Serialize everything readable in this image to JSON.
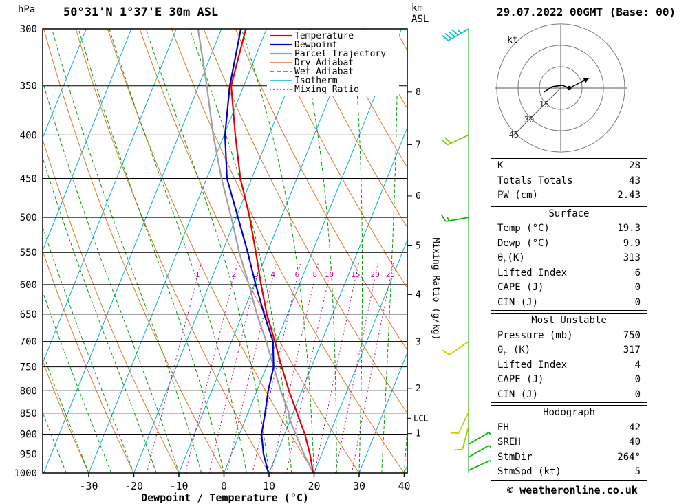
{
  "header": {
    "station_title": "50°31'N 1°37'E 30m ASL",
    "datetime_title": "29.07.2022 00GMT (Base: 00)",
    "pressure_unit": "hPa",
    "altitude_unit": [
      "km",
      "ASL"
    ]
  },
  "axes": {
    "pressure_ticks": [
      300,
      350,
      400,
      450,
      500,
      550,
      600,
      650,
      700,
      750,
      800,
      850,
      900,
      950,
      1000
    ],
    "temp_ticks": [
      -30,
      -20,
      -10,
      0,
      10,
      20,
      30,
      40
    ],
    "x_axis_label": "Dewpoint / Temperature (°C)",
    "km_ticks": [
      1,
      2,
      3,
      4,
      5,
      6,
      7,
      8
    ],
    "mixing_ratio_axis_label": "Mixing Ratio (g/kg)",
    "lcl_label": "LCL",
    "mixing_ratio_values": [
      1,
      2,
      3,
      4,
      6,
      8,
      10,
      15,
      20,
      25
    ]
  },
  "legend": [
    {
      "label": "Temperature",
      "color": "#e60000",
      "style": "solid",
      "width": 2
    },
    {
      "label": "Dewpoint",
      "color": "#0000cc",
      "style": "solid",
      "width": 2
    },
    {
      "label": "Parcel Trajectory",
      "color": "#a0a0a0",
      "style": "solid",
      "width": 2
    },
    {
      "label": "Dry Adiabat",
      "color": "#dd7722",
      "style": "solid",
      "width": 1
    },
    {
      "label": "Wet Adiabat",
      "color": "#00a000",
      "style": "dashed",
      "width": 1
    },
    {
      "label": "Isotherm",
      "color": "#00b0d0",
      "style": "solid",
      "width": 1
    },
    {
      "label": "Mixing Ratio",
      "color": "#cc0088",
      "style": "dotted",
      "width": 1
    }
  ],
  "chart_data": {
    "type": "line",
    "title": "Skew-T log-P sounding 50°31'N 1°37'E 30m ASL",
    "x_axis": "Dewpoint / Temperature (°C)",
    "y_axis": "Pressure (hPa)",
    "y_scale": "log",
    "y_range": [
      1000,
      300
    ],
    "x_ticks": [
      -30,
      -20,
      -10,
      0,
      10,
      20,
      30,
      40
    ],
    "lcl_pressure_hpa": 862,
    "series": [
      {
        "name": "Temperature",
        "color": "#e60000",
        "points_p_t": [
          [
            1000,
            19.8
          ],
          [
            950,
            17.4
          ],
          [
            900,
            14.5
          ],
          [
            850,
            10.9
          ],
          [
            800,
            7.1
          ],
          [
            750,
            3.4
          ],
          [
            700,
            -0.4
          ],
          [
            650,
            -4.6
          ],
          [
            600,
            -8.5
          ],
          [
            550,
            -12.5
          ],
          [
            500,
            -17.0
          ],
          [
            450,
            -22.5
          ],
          [
            400,
            -27.5
          ],
          [
            350,
            -32.8
          ],
          [
            300,
            -34.6
          ]
        ]
      },
      {
        "name": "Dewpoint",
        "color": "#0000cc",
        "points_p_t": [
          [
            1000,
            9.9
          ],
          [
            950,
            7.1
          ],
          [
            900,
            4.9
          ],
          [
            850,
            3.8
          ],
          [
            800,
            2.5
          ],
          [
            750,
            1.6
          ],
          [
            700,
            -0.8
          ],
          [
            650,
            -5.2
          ],
          [
            600,
            -9.7
          ],
          [
            550,
            -14.3
          ],
          [
            500,
            -19.6
          ],
          [
            450,
            -25.5
          ],
          [
            400,
            -29.8
          ],
          [
            350,
            -33.1
          ],
          [
            300,
            -35.7
          ]
        ]
      },
      {
        "name": "Parcel Trajectory",
        "color": "#a0a0a0",
        "points_p_t": [
          [
            1000,
            19.8
          ],
          [
            950,
            16.1
          ],
          [
            900,
            12.5
          ],
          [
            862,
            9.6
          ],
          [
            850,
            9.1
          ],
          [
            800,
            5.3
          ],
          [
            750,
            1.6
          ],
          [
            700,
            -2.3
          ],
          [
            650,
            -6.8
          ],
          [
            600,
            -11.2
          ],
          [
            550,
            -16.2
          ],
          [
            500,
            -21.1
          ],
          [
            450,
            -26.7
          ],
          [
            400,
            -32.4
          ],
          [
            350,
            -38.2
          ],
          [
            300,
            -45.2
          ]
        ]
      }
    ]
  },
  "wind_barbs": [
    {
      "pressure": 300,
      "speed_kt": 45,
      "from_deg": 240,
      "color": "#00c8c8"
    },
    {
      "pressure": 400,
      "speed_kt": 20,
      "from_deg": 245,
      "color": "#88cc00"
    },
    {
      "pressure": 500,
      "speed_kt": 15,
      "from_deg": 260,
      "color": "#00bb00"
    },
    {
      "pressure": 700,
      "speed_kt": 10,
      "from_deg": 235,
      "color": "#cccc00"
    },
    {
      "pressure": 848,
      "speed_kt": 10,
      "from_deg": 205,
      "color": "#cccc00"
    },
    {
      "pressure": 882,
      "speed_kt": 10,
      "from_deg": 195,
      "color": "#aacc00"
    },
    {
      "pressure": 925,
      "speed_kt": 5,
      "from_deg": 60,
      "color": "#00bb00"
    },
    {
      "pressure": 958,
      "speed_kt": 10,
      "from_deg": 60,
      "color": "#00bb00"
    },
    {
      "pressure": 993,
      "speed_kt": 10,
      "from_deg": 65,
      "color": "#00bb00"
    }
  ],
  "hodograph": {
    "unit_label": "kt",
    "ring_labels": [
      15,
      30,
      45
    ],
    "trace_kt": [
      [
        -12,
        -3
      ],
      [
        -6,
        1
      ],
      [
        1,
        2
      ],
      [
        6,
        0
      ]
    ],
    "storm_motion_end_kt": [
      20,
      7
    ]
  },
  "tables": {
    "indices": {
      "rows": [
        [
          "K",
          "28"
        ],
        [
          "Totals Totals",
          "43"
        ],
        [
          "PW (cm)",
          "2.43"
        ]
      ]
    },
    "surface": {
      "title": "Surface",
      "rows": [
        [
          "Temp (°C)",
          "19.3"
        ],
        [
          "Dewp (°C)",
          "9.9"
        ],
        [
          "θE(K)",
          "313"
        ],
        [
          "Lifted Index",
          "6"
        ],
        [
          "CAPE (J)",
          "0"
        ],
        [
          "CIN (J)",
          "0"
        ]
      ]
    },
    "most_unstable": {
      "title": "Most Unstable",
      "rows": [
        [
          "Pressure (mb)",
          "750"
        ],
        [
          "θE (K)",
          "317"
        ],
        [
          "Lifted Index",
          "4"
        ],
        [
          "CAPE (J)",
          "0"
        ],
        [
          "CIN (J)",
          "0"
        ]
      ]
    },
    "hodograph": {
      "title": "Hodograph",
      "rows": [
        [
          "EH",
          "42"
        ],
        [
          "SREH",
          "40"
        ],
        [
          "StmDir",
          "264°"
        ],
        [
          "StmSpd (kt)",
          "5"
        ]
      ]
    }
  },
  "copyright": "© weatheronline.co.uk"
}
